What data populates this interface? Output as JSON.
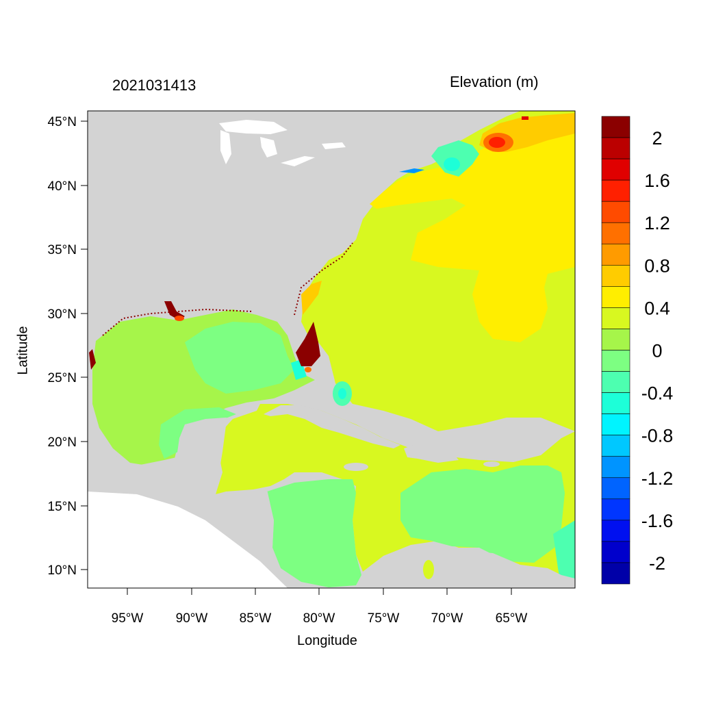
{
  "header": {
    "timestamp": "2021031413",
    "variable_title": "Elevation (m)"
  },
  "axes": {
    "xlabel": "Longitude",
    "ylabel": "Latitude",
    "x_ticks": [
      "95°W",
      "90°W",
      "85°W",
      "80°W",
      "75°W",
      "70°W",
      "65°W"
    ],
    "y_ticks": [
      "45°N",
      "40°N",
      "35°N",
      "30°N",
      "25°N",
      "20°N",
      "15°N",
      "10°N"
    ]
  },
  "colorbar": {
    "labels": [
      "2",
      "1.6",
      "1.2",
      "0.8",
      "0.4",
      "0",
      "-0.4",
      "-0.8",
      "-1.2",
      "-1.6",
      "-2"
    ],
    "colors": [
      "#8b0000",
      "#bb0000",
      "#e00000",
      "#ff2000",
      "#ff4b00",
      "#ff7000",
      "#ff9b00",
      "#ffcc00",
      "#ffee00",
      "#d8f820",
      "#a6f54a",
      "#7dff82",
      "#4dffb0",
      "#1dffd8",
      "#00f4ff",
      "#00c8ff",
      "#0094ff",
      "#0064ff",
      "#0036ff",
      "#0010f0",
      "#0000cc",
      "#0000a8"
    ]
  },
  "map_colors": {
    "land": "#d3d3d3",
    "water": "#ffffff"
  }
}
